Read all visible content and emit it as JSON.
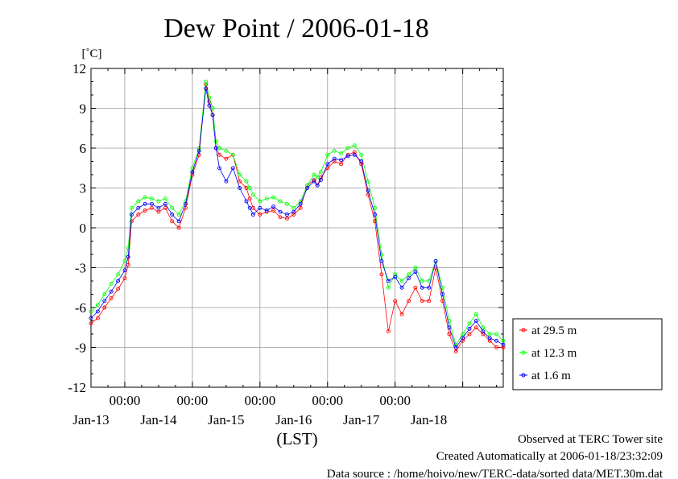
{
  "chart_data": {
    "type": "line",
    "title": "Dew Point / 2006-01-18",
    "ylabel": "[˚C]",
    "xlabel": "(LST)",
    "ylim": [
      -12,
      12
    ],
    "yticks": [
      -12,
      -9,
      -6,
      -3,
      0,
      3,
      6,
      9,
      12
    ],
    "x_start": "2006-01-12 12:00",
    "xlim_days": [
      0,
      6.1
    ],
    "x_tick_top": [
      "00:00",
      "00:00",
      "00:00",
      "00:00",
      "00:00"
    ],
    "x_tick_dates": [
      "Jan-13",
      "Jan-14",
      "Jan-15",
      "Jan-16",
      "Jan-17",
      "Jan-18"
    ],
    "grid": true,
    "legend_position": "bottom-right",
    "series": [
      {
        "name": "at 29.5 m",
        "color": "#ff0000",
        "x": [
          0,
          0.1,
          0.2,
          0.3,
          0.4,
          0.5,
          0.55,
          0.6,
          0.7,
          0.8,
          0.9,
          1,
          1.1,
          1.2,
          1.3,
          1.4,
          1.5,
          1.6,
          1.7,
          1.75,
          1.8,
          1.85,
          1.9,
          2,
          2.1,
          2.2,
          2.3,
          2.35,
          2.4,
          2.5,
          2.6,
          2.7,
          2.8,
          2.9,
          3,
          3.1,
          3.2,
          3.3,
          3.35,
          3.4,
          3.5,
          3.6,
          3.7,
          3.8,
          3.9,
          4,
          4.1,
          4.2,
          4.3,
          4.4,
          4.5,
          4.6,
          4.7,
          4.8,
          4.9,
          5,
          5.1,
          5.2,
          5.3,
          5.4,
          5.5,
          5.6,
          5.7,
          5.8,
          5.9,
          6,
          6.1
        ],
        "values": [
          -7.2,
          -6.8,
          -6,
          -5.3,
          -4.6,
          -3.8,
          -2.8,
          0.5,
          1,
          1.3,
          1.5,
          1.2,
          1.5,
          0.5,
          0,
          1.5,
          4,
          5.5,
          10.8,
          9.5,
          8.5,
          6,
          5.5,
          5.2,
          5.5,
          3.5,
          3,
          2.2,
          1.5,
          1,
          1.2,
          1.3,
          0.8,
          0.7,
          1,
          1.5,
          3.2,
          3.6,
          3.2,
          3.8,
          4.5,
          5,
          4.8,
          5.5,
          5.7,
          4.8,
          2.5,
          0.5,
          -3.5,
          -7.8,
          -5.5,
          -6.5,
          -5.5,
          -4.5,
          -5.5,
          -5.5,
          -3,
          -5.5,
          -8,
          -9.3,
          -8.5,
          -8,
          -7.5,
          -8,
          -8.5,
          -9,
          -9
        ]
      },
      {
        "name": "at 12.3 m",
        "color": "#00ff00",
        "x": [
          0,
          0.1,
          0.2,
          0.3,
          0.4,
          0.5,
          0.55,
          0.6,
          0.7,
          0.8,
          0.9,
          1,
          1.1,
          1.2,
          1.3,
          1.4,
          1.5,
          1.6,
          1.7,
          1.75,
          1.8,
          1.85,
          1.9,
          2,
          2.1,
          2.2,
          2.3,
          2.35,
          2.4,
          2.5,
          2.6,
          2.7,
          2.8,
          2.9,
          3,
          3.1,
          3.2,
          3.3,
          3.35,
          3.4,
          3.5,
          3.6,
          3.7,
          3.8,
          3.9,
          4,
          4.1,
          4.2,
          4.3,
          4.4,
          4.5,
          4.6,
          4.7,
          4.8,
          4.9,
          5,
          5.1,
          5.2,
          5.3,
          5.4,
          5.5,
          5.6,
          5.7,
          5.8,
          5.9,
          6,
          6.1
        ],
        "values": [
          -6.3,
          -5.8,
          -5,
          -4.2,
          -3.5,
          -2.5,
          -1.5,
          1.5,
          2,
          2.3,
          2.2,
          2,
          2.2,
          1.5,
          1,
          2,
          4.5,
          6,
          11,
          9.8,
          9,
          6.5,
          6,
          5.8,
          5.5,
          4,
          3.5,
          3,
          2.5,
          2,
          2.2,
          2.3,
          2,
          1.8,
          1.5,
          2,
          3.2,
          4,
          3.8,
          4.2,
          5.5,
          5.8,
          5.6,
          6,
          6.2,
          5.5,
          3.5,
          1.5,
          -2,
          -4.5,
          -3.5,
          -4,
          -3.5,
          -3,
          -4,
          -4,
          -2.5,
          -4.5,
          -7,
          -8.8,
          -8,
          -7.2,
          -6.5,
          -7.5,
          -8,
          -8,
          -8.5
        ]
      },
      {
        "name": "at 1.6 m",
        "color": "#0000ff",
        "x": [
          0,
          0.1,
          0.2,
          0.3,
          0.4,
          0.5,
          0.55,
          0.6,
          0.7,
          0.8,
          0.9,
          1,
          1.1,
          1.2,
          1.3,
          1.4,
          1.5,
          1.6,
          1.7,
          1.75,
          1.8,
          1.85,
          1.9,
          2,
          2.1,
          2.2,
          2.3,
          2.35,
          2.4,
          2.5,
          2.6,
          2.7,
          2.8,
          2.9,
          3,
          3.1,
          3.2,
          3.3,
          3.35,
          3.4,
          3.5,
          3.6,
          3.7,
          3.8,
          3.9,
          4,
          4.1,
          4.2,
          4.3,
          4.4,
          4.5,
          4.6,
          4.7,
          4.8,
          4.9,
          5,
          5.1,
          5.2,
          5.3,
          5.4,
          5.5,
          5.6,
          5.7,
          5.8,
          5.9,
          6,
          6.1
        ],
        "values": [
          -6.8,
          -6.3,
          -5.5,
          -4.8,
          -4,
          -3.2,
          -2.2,
          1,
          1.5,
          1.8,
          1.8,
          1.5,
          1.8,
          1,
          0.5,
          1.8,
          4.2,
          5.8,
          10.5,
          9.2,
          8.5,
          6,
          4.5,
          3.5,
          4.5,
          3,
          2,
          1.5,
          1,
          1.5,
          1.3,
          1.6,
          1.2,
          1,
          1.2,
          1.8,
          3,
          3.5,
          3.2,
          3.6,
          4.8,
          5.2,
          5.1,
          5.4,
          5.5,
          5.0,
          2.8,
          1,
          -2.5,
          -4,
          -3.7,
          -4.5,
          -3.8,
          -3.3,
          -4.5,
          -4.5,
          -2.5,
          -5,
          -7.5,
          -9,
          -8.3,
          -7.6,
          -7,
          -7.8,
          -8.3,
          -8.5,
          -8.8
        ]
      }
    ],
    "notes": [
      "Observed at TERC Tower site",
      "Created Automatically at 2006-01-18/23:32:09",
      "Data source : /home/hoivo/new/TERC-data/sorted  data/MET.30m.dat"
    ]
  }
}
